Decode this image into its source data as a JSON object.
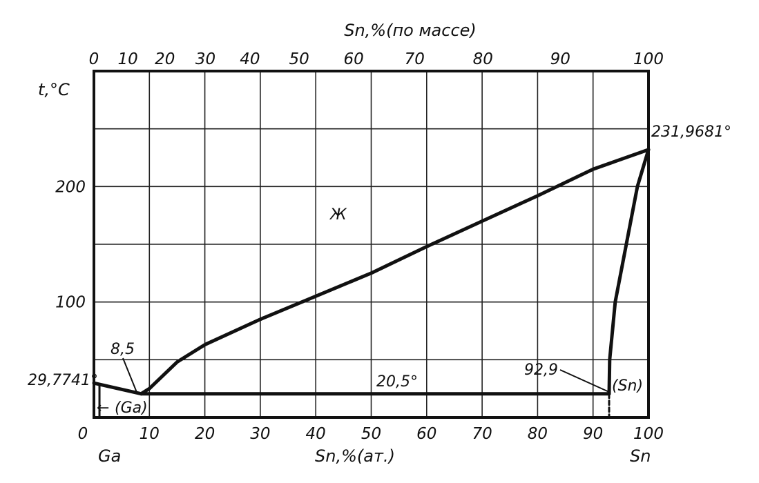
{
  "chart_data": {
    "type": "line",
    "title": "",
    "xlabel_bottom": "Sn,%(ат.)",
    "xlabel_top": "Sn,%(по массе)",
    "ylabel": "t,°C",
    "xlim": [
      0,
      100
    ],
    "ylim": [
      0,
      300
    ],
    "x_ticks_bottom": [
      0,
      10,
      20,
      30,
      40,
      50,
      60,
      70,
      80,
      90,
      100
    ],
    "x_ticks_top": [
      0,
      10,
      20,
      30,
      40,
      50,
      60,
      70,
      80,
      90,
      100
    ],
    "y_ticks": [
      100,
      200
    ],
    "grid": true,
    "element_left": "Ga",
    "element_right": "Sn",
    "series": [
      {
        "role": "liquidus-ga-side",
        "x": [
          0,
          8.5
        ],
        "y": [
          29.7741,
          20.5
        ]
      },
      {
        "role": "liquidus-sn-side",
        "x": [
          8.5,
          10,
          15,
          20,
          30,
          40,
          50,
          60,
          70,
          80,
          90,
          100
        ],
        "y": [
          20.5,
          25,
          48,
          63,
          85,
          105,
          125,
          148,
          170,
          192,
          215,
          231.9681
        ]
      },
      {
        "role": "eutectic-line",
        "x": [
          8.5,
          92.9
        ],
        "y": [
          20.5,
          20.5
        ]
      },
      {
        "role": "solidus-sn",
        "x": [
          100,
          98,
          96,
          94,
          93,
          92.9
        ],
        "y": [
          231.9681,
          200,
          150,
          100,
          50,
          20.5
        ]
      },
      {
        "role": "solvus-sn",
        "x": [
          92.9,
          92.9
        ],
        "y": [
          20.5,
          0
        ]
      },
      {
        "role": "ga-solubility",
        "x": [
          0,
          1,
          1
        ],
        "y": [
          0,
          0,
          29
        ]
      }
    ],
    "annotations": {
      "ga_melting": "29,7741°",
      "sn_melting": "231,9681°",
      "eutectic_temp": "20,5°",
      "eutectic_comp": "8,5",
      "sn_solubility": "92,9",
      "liquid": "Ж",
      "phase_ga": "(Ga)",
      "phase_sn": "(Sn)",
      "ga_arrow": "←"
    }
  }
}
